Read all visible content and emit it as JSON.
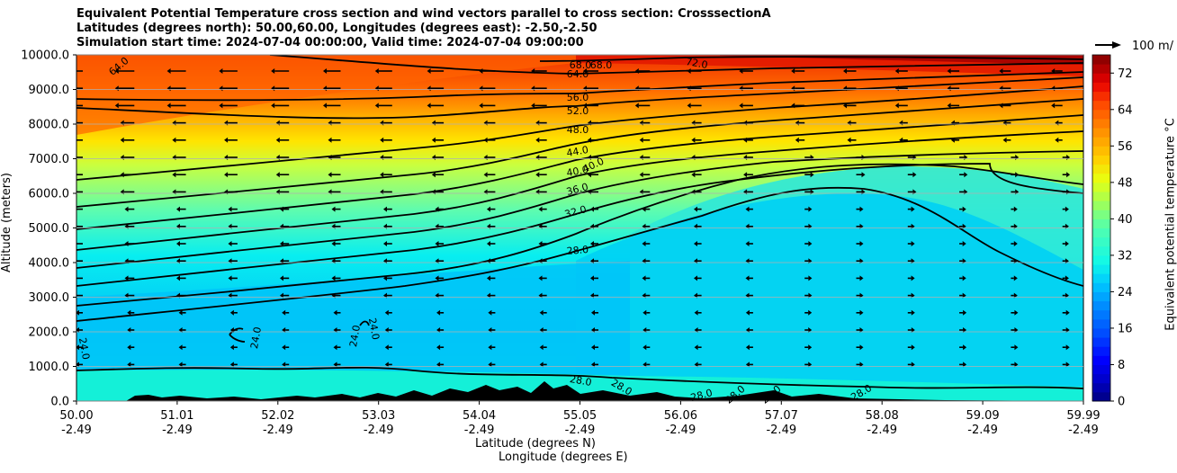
{
  "title_lines": [
    "Equivalent Potential Temperature cross section and wind vectors parallel to cross section: CrosssectionA",
    "Latitudes (degrees north): 50.00,60.00, Longitudes (degrees east): -2.50,-2.50",
    "Simulation start time: 2024-07-04 00:00:00, Valid time: 2024-07-04 09:00:00"
  ],
  "chart_data": {
    "type": "contourf",
    "ylabel": "Altitude (meters)",
    "xlabel_lat": "Latitude (degrees N)",
    "xlabel_lon": "Longitude (degrees E)",
    "ylim": [
      0,
      10000
    ],
    "yticks": [
      "0.0",
      "1000.0",
      "2000.0",
      "3000.0",
      "4000.0",
      "5000.0",
      "6000.0",
      "7000.0",
      "8000.0",
      "9000.0",
      "10000.0"
    ],
    "xticks_lat": [
      "50.00",
      "51.01",
      "52.02",
      "53.03",
      "54.04",
      "55.05",
      "56.06",
      "57.07",
      "58.08",
      "59.09",
      "59.99"
    ],
    "xticks_lon": [
      "-2.49",
      "-2.49",
      "-2.49",
      "-2.49",
      "-2.49",
      "-2.49",
      "-2.49",
      "-2.49",
      "-2.49",
      "-2.49",
      "-2.49"
    ],
    "colorbar_label": "Equivalent potential temperature °C",
    "colorbar_ticks": [
      "0",
      "8",
      "16",
      "24",
      "32",
      "40",
      "48",
      "56",
      "64",
      "72"
    ],
    "colorbar_range": [
      0,
      76
    ],
    "reference_vector": "100 m/",
    "contour_levels": [
      24,
      28,
      32,
      36,
      40,
      44,
      48,
      52,
      56,
      60,
      64,
      68,
      72
    ],
    "contour_labels": [
      {
        "text": "64.0"
      },
      {
        "text": "68.0"
      },
      {
        "text": "68.0"
      },
      {
        "text": "72.0"
      },
      {
        "text": "64.0"
      },
      {
        "text": "56.0"
      },
      {
        "text": "52.0"
      },
      {
        "text": "48.0"
      },
      {
        "text": "44.0"
      },
      {
        "text": "40.0"
      },
      {
        "text": "40.0"
      },
      {
        "text": "36.0"
      },
      {
        "text": "32.0"
      },
      {
        "text": "28.0"
      },
      {
        "text": "24.0"
      },
      {
        "text": "24.0"
      },
      {
        "text": "24.0"
      },
      {
        "text": "24.0"
      },
      {
        "text": "28.0"
      },
      {
        "text": "28.0"
      },
      {
        "text": "28.0"
      },
      {
        "text": "28.0"
      },
      {
        "text": "28.0"
      },
      {
        "text": "28.0"
      }
    ]
  }
}
